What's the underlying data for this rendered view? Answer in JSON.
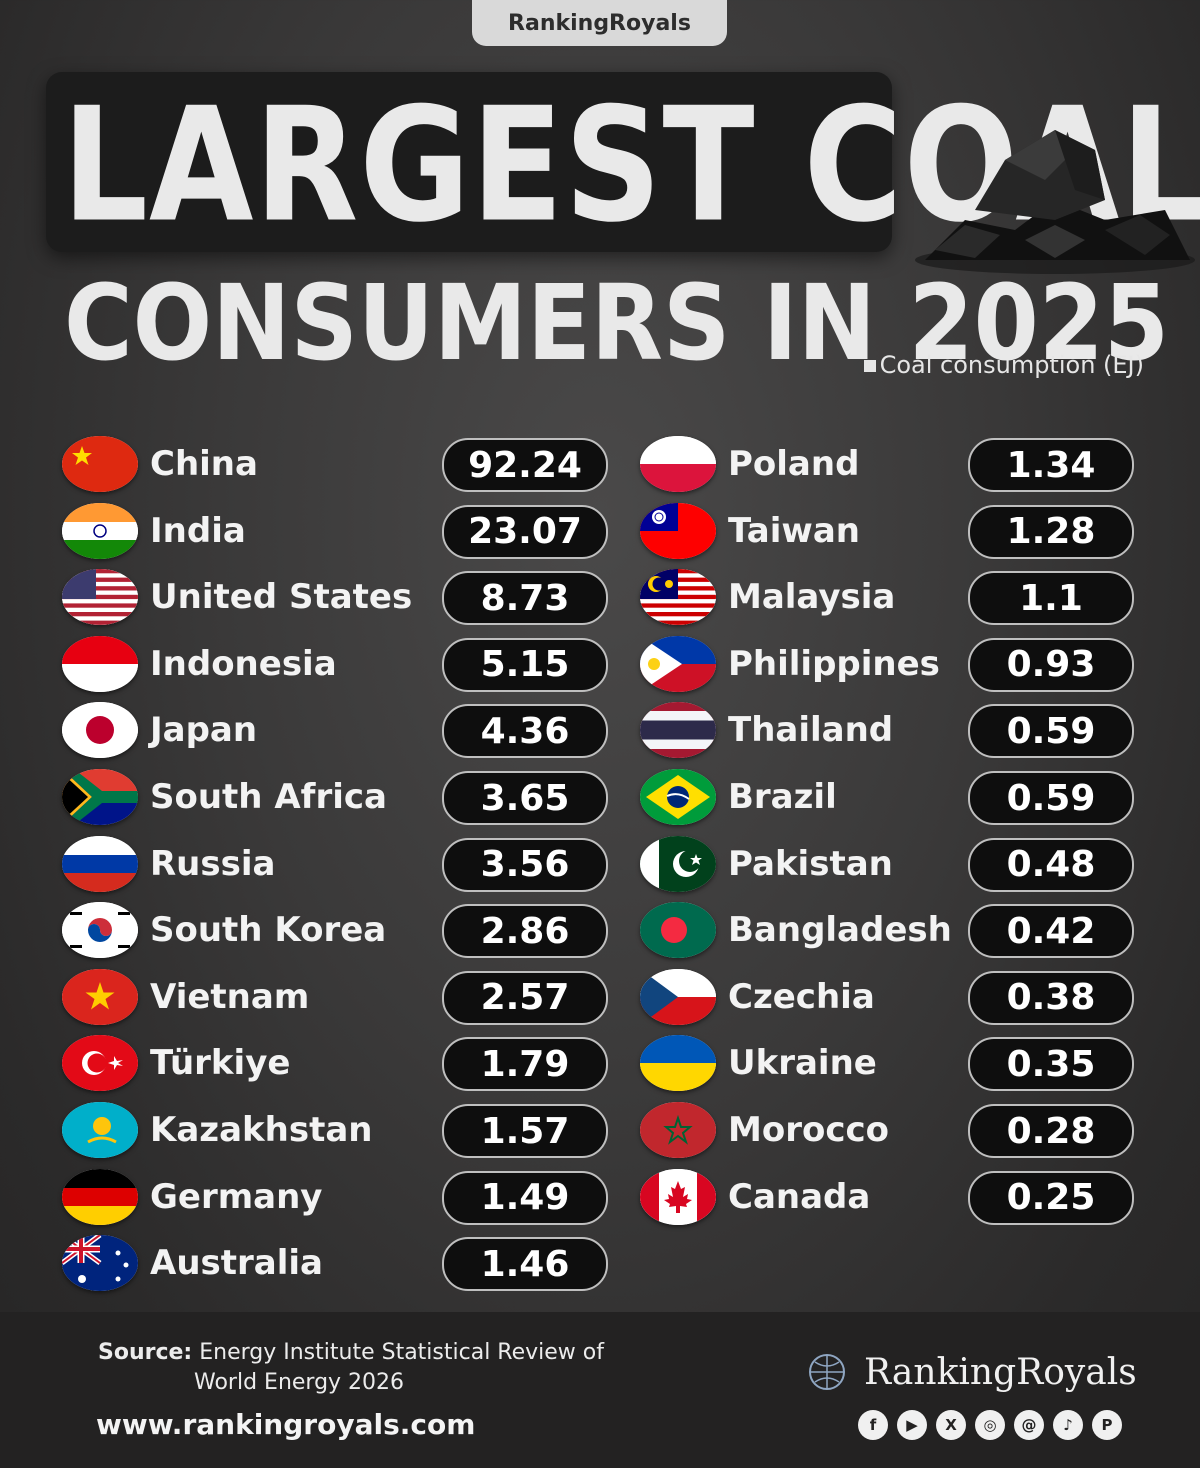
{
  "brand": "RankingRoyals",
  "title_line1": "LARGEST COAL",
  "title_line2": "CONSUMERS IN 2025",
  "legend_label": "Coal consumption (EJ)",
  "chart_data": {
    "type": "table",
    "series": [
      {
        "name": "Coal consumption (EJ)"
      }
    ],
    "rows": [
      {
        "country": "China",
        "value": "92.24",
        "flag": "china-flag"
      },
      {
        "country": "India",
        "value": "23.07",
        "flag": "india-flag"
      },
      {
        "country": "United States",
        "value": "8.73",
        "flag": "us-flag"
      },
      {
        "country": "Indonesia",
        "value": "5.15",
        "flag": "indonesia-flag"
      },
      {
        "country": "Japan",
        "value": "4.36",
        "flag": "japan-flag"
      },
      {
        "country": "South Africa",
        "value": "3.65",
        "flag": "south-africa-flag"
      },
      {
        "country": "Russia",
        "value": "3.56",
        "flag": "russia-flag"
      },
      {
        "country": "South Korea",
        "value": "2.86",
        "flag": "south-korea-flag"
      },
      {
        "country": "Vietnam",
        "value": "2.57",
        "flag": "vietnam-flag"
      },
      {
        "country": "Türkiye",
        "value": "1.79",
        "flag": "turkiye-flag"
      },
      {
        "country": "Kazakhstan",
        "value": "1.57",
        "flag": "kazakhstan-flag"
      },
      {
        "country": "Germany",
        "value": "1.49",
        "flag": "germany-flag"
      },
      {
        "country": "Australia",
        "value": "1.46",
        "flag": "australia-flag"
      },
      {
        "country": "Poland",
        "value": "1.34",
        "flag": "poland-flag"
      },
      {
        "country": "Taiwan",
        "value": "1.28",
        "flag": "taiwan-flag"
      },
      {
        "country": "Malaysia",
        "value": "1.1",
        "flag": "malaysia-flag"
      },
      {
        "country": "Philippines",
        "value": "0.93",
        "flag": "philippines-flag"
      },
      {
        "country": "Thailand",
        "value": "0.59",
        "flag": "thailand-flag"
      },
      {
        "country": "Brazil",
        "value": "0.59",
        "flag": "brazil-flag"
      },
      {
        "country": "Pakistan",
        "value": "0.48",
        "flag": "pakistan-flag"
      },
      {
        "country": "Bangladesh",
        "value": "0.42",
        "flag": "bangladesh-flag"
      },
      {
        "country": "Czechia",
        "value": "0.38",
        "flag": "czechia-flag"
      },
      {
        "country": "Ukraine",
        "value": "0.35",
        "flag": "ukraine-flag"
      },
      {
        "country": "Morocco",
        "value": "0.28",
        "flag": "morocco-flag"
      },
      {
        "country": "Canada",
        "value": "0.25",
        "flag": "canada-flag"
      }
    ]
  },
  "footer": {
    "source_label": "Source:",
    "source_line1": "Energy Institute Statistical Review of",
    "source_line2": "World Energy 2026",
    "url": "www.rankingroyals.com",
    "logo_text": "RankingRoyals",
    "social_icons": [
      "facebook-icon",
      "youtube-icon",
      "x-icon",
      "instagram-icon",
      "threads-icon",
      "tiktok-icon",
      "pinterest-icon"
    ]
  },
  "colors": {
    "background": "#3a3939",
    "pill_bg": "#0e0e0e",
    "pill_border": "#bfbfbf",
    "text": "#f3f3f3"
  }
}
